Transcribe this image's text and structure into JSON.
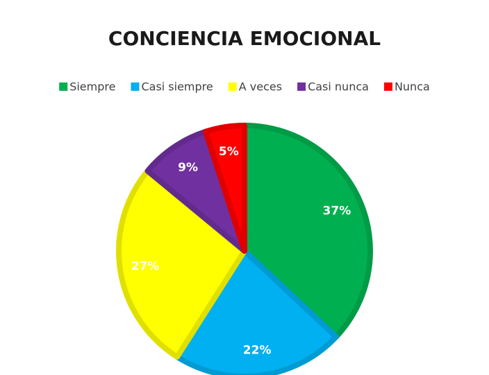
{
  "chart_data": {
    "type": "pie",
    "title": "CONCIENCIA EMOCIONAL",
    "categories": [
      "Siempre",
      "Casi siempre",
      "A veces",
      "Casi nunca",
      "Nunca"
    ],
    "values": [
      37,
      22,
      27,
      9,
      5
    ],
    "value_labels": [
      "37%",
      "22%",
      "27%",
      "9%",
      "5%"
    ],
    "colors": [
      "#00b050",
      "#00b0f0",
      "#ffff00",
      "#7030a0",
      "#ff0000"
    ],
    "legend": "top"
  }
}
